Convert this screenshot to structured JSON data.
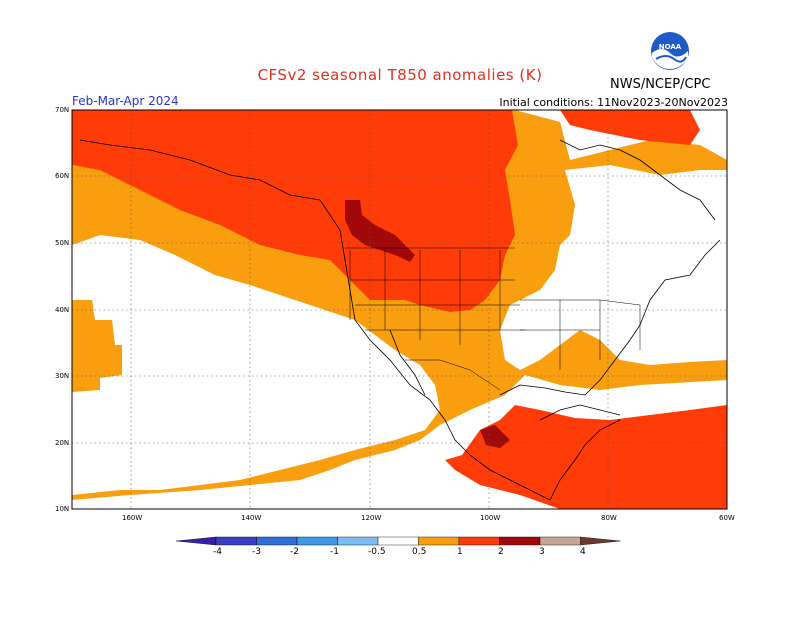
{
  "title": "CFSv2 seasonal T850 anomalies (K)",
  "period": "Feb-Mar-Apr 2024",
  "initial_conditions": "Initial conditions: 11Nov2023-20Nov2023",
  "agency": "NWS/NCEP/CPC",
  "logo_text": "NOAA",
  "lat_labels": [
    "70N",
    "60N",
    "50N",
    "40N",
    "30N",
    "20N",
    "10N"
  ],
  "lon_labels": [
    "160W",
    "140W",
    "120W",
    "100W",
    "80W",
    "60W"
  ],
  "colorbar": {
    "labels": [
      "-4",
      "-3",
      "-2",
      "-1",
      "-0.5",
      "0.5",
      "1",
      "2",
      "3",
      "4"
    ],
    "colors": [
      "#3a1ea8",
      "#3a3fc8",
      "#2f6fd8",
      "#3f97e8",
      "#7dbdf5",
      "#ffffff",
      "#f99e0e",
      "#ff3b08",
      "#a0080a",
      "#c9a394",
      "#6b3a2e"
    ]
  },
  "colors": {
    "weak_warm": "#f99e0e",
    "moderate_warm": "#ff3b08",
    "strong_warm": "#a0080a",
    "title": "#e0301e",
    "period": "#2a36c8"
  }
}
